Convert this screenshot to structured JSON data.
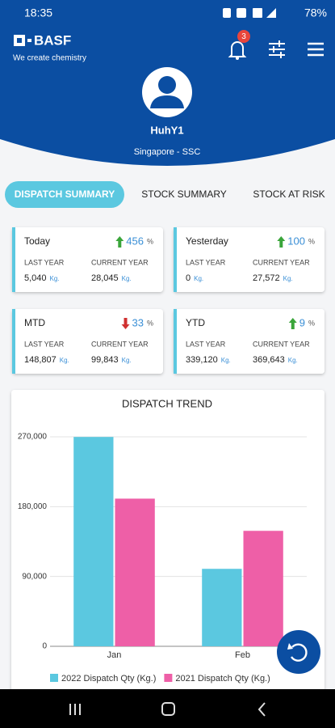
{
  "status_bar": {
    "time": "18:35",
    "battery": "78%"
  },
  "header": {
    "brand": "BASF",
    "tagline": "We create chemistry",
    "notifications": "3",
    "user_name": "HuhY1",
    "location": "Singapore - SSC"
  },
  "tabs": [
    "DISPATCH SUMMARY",
    "STOCK SUMMARY",
    "STOCK AT RISK"
  ],
  "cards": [
    {
      "label": "Today",
      "trend": "up",
      "change": "456",
      "change_unit": "%",
      "last_label": "LAST YEAR",
      "current_label": "CURRENT YEAR",
      "last_value": "5,040",
      "last_unit": "Kg.",
      "current_value": "28,045",
      "current_unit": "Kg."
    },
    {
      "label": "Yesterday",
      "trend": "up",
      "change": "100",
      "change_unit": "%",
      "last_label": "LAST YEAR",
      "current_label": "CURRENT YEAR",
      "last_value": "0",
      "last_unit": "Kg.",
      "current_value": "27,572",
      "current_unit": "Kg."
    },
    {
      "label": "MTD",
      "trend": "down",
      "change": "33",
      "change_unit": "%",
      "last_label": "LAST YEAR",
      "current_label": "CURRENT YEAR",
      "last_value": "148,807",
      "last_unit": "Kg.",
      "current_value": "99,843",
      "current_unit": "Kg."
    },
    {
      "label": "YTD",
      "trend": "up",
      "change": "9",
      "change_unit": "%",
      "last_label": "LAST YEAR",
      "current_label": "CURRENT YEAR",
      "last_value": "339,120",
      "last_unit": "Kg.",
      "current_value": "369,643",
      "current_unit": "Kg."
    }
  ],
  "chart_data": {
    "type": "bar",
    "title": "DISPATCH TREND",
    "categories": [
      "Jan",
      "Feb"
    ],
    "series": [
      {
        "name": "2022 Dispatch Qty (Kg.)",
        "color": "#5bc8e0",
        "values": [
          269800,
          99843
        ]
      },
      {
        "name": "2021 Dispatch Qty (Kg.)",
        "color": "#ee5fa7",
        "values": [
          190313,
          148807
        ]
      }
    ],
    "ylim": [
      0,
      270000
    ],
    "yticks": [
      0,
      {
        "value": 90000,
        "label": "90,000"
      },
      {
        "value": 180000,
        "label": "180,000"
      },
      {
        "value": 270000,
        "label": "270,000"
      }
    ],
    "grid": true,
    "legend": "bottom"
  }
}
